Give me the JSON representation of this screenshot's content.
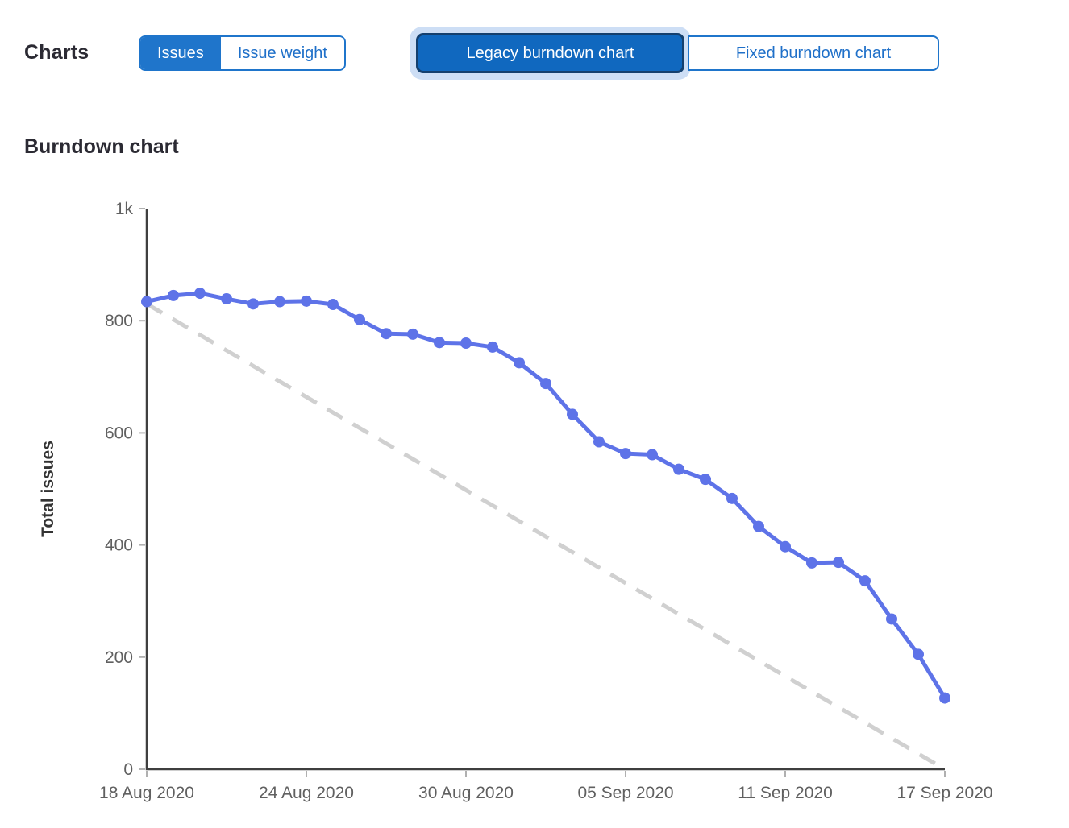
{
  "header": {
    "charts_label": "Charts",
    "metric_toggle": [
      {
        "label": "Issues",
        "selected": true
      },
      {
        "label": "Issue weight",
        "selected": false
      }
    ],
    "chart_type_toggle": [
      {
        "label": "Legacy burndown chart",
        "selected": true,
        "focused": true
      },
      {
        "label": "Fixed burndown chart",
        "selected": false
      }
    ]
  },
  "section": {
    "title": "Burndown chart"
  },
  "colors": {
    "accent_blue": "#1f75cb",
    "active_blue": "#1068bf",
    "focus_halo": "#cddef5",
    "focus_ring": "#15406e",
    "series_blue": "#5e73e8",
    "guideline_gray": "#d0d0d0",
    "axis_dark": "#3f3f3f",
    "tick_text_gray": "#606060"
  },
  "chart_data": {
    "type": "line",
    "title": "Burndown chart",
    "xlabel": "",
    "ylabel": "Total issues",
    "ylim": [
      0,
      1000
    ],
    "grid": false,
    "legend": "none",
    "y_ticks": [
      {
        "value": 0,
        "label": "0"
      },
      {
        "value": 200,
        "label": "200"
      },
      {
        "value": 400,
        "label": "400"
      },
      {
        "value": 600,
        "label": "600"
      },
      {
        "value": 800,
        "label": "800"
      },
      {
        "value": 1000,
        "label": "1k"
      }
    ],
    "x": [
      "18 Aug 2020",
      "19 Aug 2020",
      "20 Aug 2020",
      "21 Aug 2020",
      "22 Aug 2020",
      "23 Aug 2020",
      "24 Aug 2020",
      "25 Aug 2020",
      "26 Aug 2020",
      "27 Aug 2020",
      "28 Aug 2020",
      "29 Aug 2020",
      "30 Aug 2020",
      "31 Aug 2020",
      "01 Sep 2020",
      "02 Sep 2020",
      "03 Sep 2020",
      "04 Sep 2020",
      "05 Sep 2020",
      "06 Sep 2020",
      "07 Sep 2020",
      "08 Sep 2020",
      "09 Sep 2020",
      "10 Sep 2020",
      "11 Sep 2020",
      "12 Sep 2020",
      "13 Sep 2020",
      "14 Sep 2020",
      "15 Sep 2020",
      "16 Sep 2020",
      "17 Sep 2020"
    ],
    "x_ticks": [
      {
        "index": 0,
        "label": "18 Aug 2020"
      },
      {
        "index": 6,
        "label": "24 Aug 2020"
      },
      {
        "index": 12,
        "label": "30 Aug 2020"
      },
      {
        "index": 18,
        "label": "05 Sep 2020"
      },
      {
        "index": 24,
        "label": "11 Sep 2020"
      },
      {
        "index": 30,
        "label": "17 Sep 2020"
      }
    ],
    "series": [
      {
        "name": "Total issues",
        "style": "solid-line-with-dots",
        "color": "#5e73e8",
        "values": [
          834,
          845,
          849,
          839,
          830,
          834,
          835,
          829,
          802,
          777,
          776,
          761,
          760,
          753,
          725,
          688,
          633,
          584,
          563,
          561,
          535,
          517,
          483,
          433,
          397,
          368,
          369,
          336,
          268,
          205,
          127
        ]
      },
      {
        "name": "Guideline",
        "style": "dashed-line",
        "color": "#d0d0d0",
        "points": [
          [
            0,
            830
          ],
          [
            30,
            0
          ]
        ]
      }
    ]
  }
}
